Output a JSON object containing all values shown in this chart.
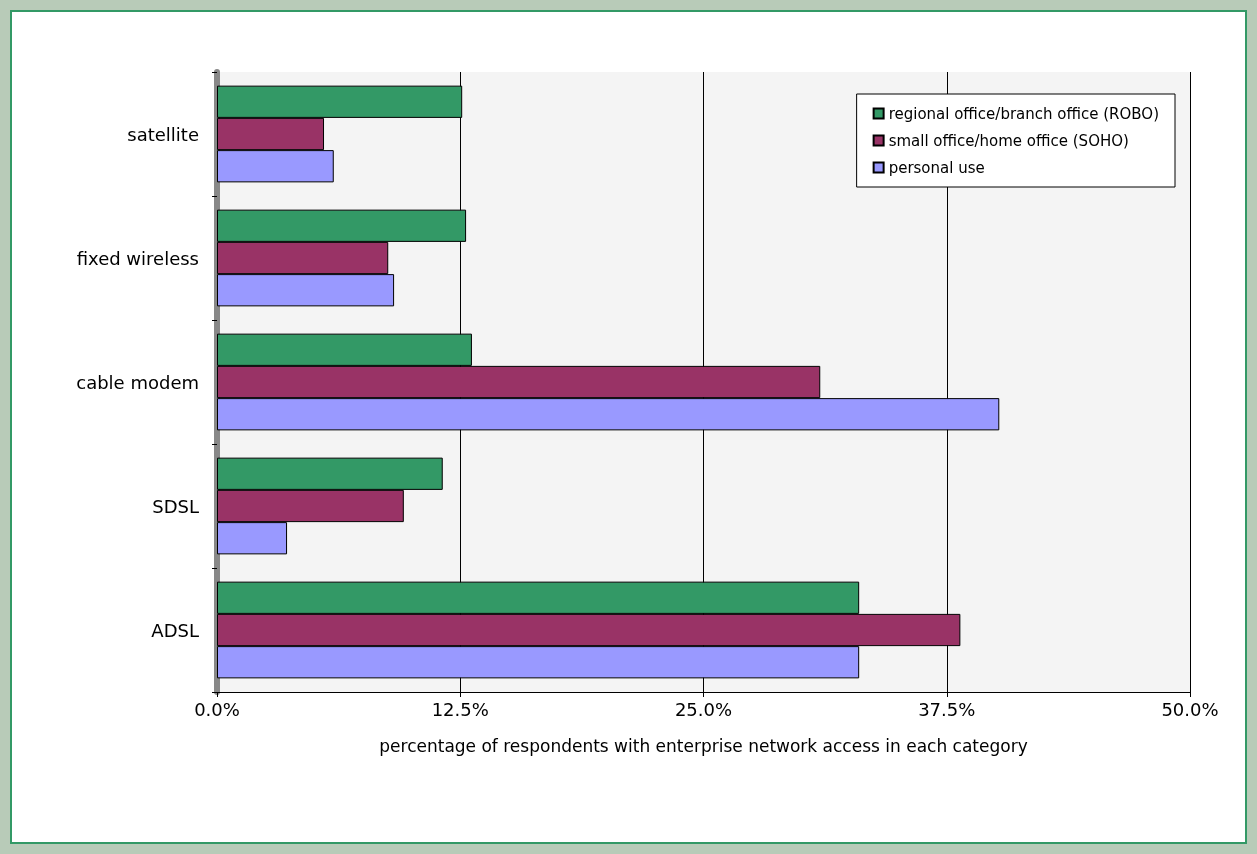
{
  "chart_data": {
    "type": "bar",
    "orientation": "horizontal",
    "xlabel": "percentage of respondents with enterprise network access in each category",
    "categories": [
      "satellite",
      "fixed wireless",
      "cable modem",
      "SDSL",
      "ADSL"
    ],
    "series": [
      {
        "name": "regional office/branch office (ROBO)",
        "color": "#339966",
        "values": [
          12.6,
          12.8,
          13.1,
          11.6,
          33.0
        ]
      },
      {
        "name": "small office/home office (SOHO)",
        "color": "#993366",
        "values": [
          5.5,
          8.8,
          31.0,
          9.6,
          38.2
        ]
      },
      {
        "name": "personal use",
        "color": "#9999ff",
        "values": [
          6.0,
          9.1,
          40.2,
          3.6,
          33.0
        ]
      }
    ],
    "xlim": [
      0,
      50
    ],
    "xticks": [
      {
        "value": 0,
        "label": "0.0%"
      },
      {
        "value": 12.5,
        "label": "12.5%"
      },
      {
        "value": 25,
        "label": "25.0%"
      },
      {
        "value": 37.5,
        "label": "37.5%"
      },
      {
        "value": 50,
        "label": "50.0%"
      }
    ],
    "grid": "x",
    "legend": "top right"
  }
}
